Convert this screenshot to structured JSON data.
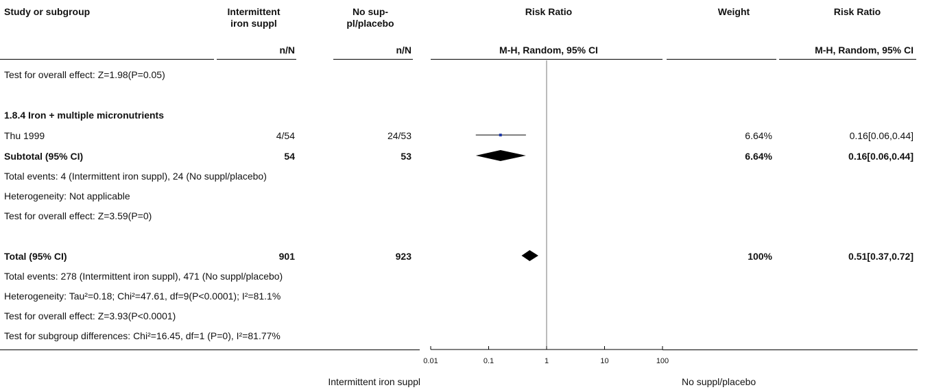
{
  "header": {
    "study_or_subgroup": "Study or subgroup",
    "group1_line1": "Intermittent",
    "group1_line2": "iron suppl",
    "group2_line1": "No sup-",
    "group2_line2": "pl/placebo",
    "risk_ratio": "Risk Ratio",
    "weight": "Weight",
    "risk_ratio_right": "Risk Ratio",
    "n_over_n_1": "n/N",
    "n_over_n_2": "n/N",
    "method": "M-H, Random, 95% CI",
    "method_right": "M-H, Random, 95% CI"
  },
  "rows": {
    "test_effect_prev": "Test for overall effect: Z=1.98(P=0.05)",
    "subgroup_184": "1.8.4 Iron + multiple micronutrients",
    "thu_name": "Thu 1999",
    "thu_g1": "4/54",
    "thu_g2": "24/53",
    "thu_weight": "6.64%",
    "thu_ci": "0.16[0.06,0.44]",
    "subtotal_label": "Subtotal (95% CI)",
    "subtotal_g1": "54",
    "subtotal_g2": "53",
    "subtotal_weight": "6.64%",
    "subtotal_ci": "0.16[0.06,0.44]",
    "sub_events": "Total events: 4 (Intermittent iron suppl), 24 (No suppl/placebo)",
    "sub_het": "Heterogeneity: Not applicable",
    "sub_test": "Test for overall effect: Z=3.59(P=0)",
    "total_label": "Total (95% CI)",
    "total_g1": "901",
    "total_g2": "923",
    "total_weight": "100%",
    "total_ci": "0.51[0.37,0.72]",
    "total_events": "Total events: 278 (Intermittent iron suppl), 471 (No suppl/placebo)",
    "total_het": "Heterogeneity: Tau²=0.18; Chi²=47.61, df=9(P<0.0001); I²=81.1%",
    "total_test": "Test for overall effect: Z=3.93(P<0.0001)",
    "subgroup_diff": "Test for subgroup differences: Chi²=16.45, df=1 (P=0), I²=81.77%"
  },
  "footer": {
    "favours_left": "Intermittent iron suppl",
    "favours_right": "No suppl/placebo"
  },
  "chart_data": {
    "type": "forest",
    "scale": "log",
    "xlim": [
      0.01,
      100
    ],
    "ticks": [
      0.01,
      0.1,
      1,
      10,
      100
    ],
    "tick_labels": [
      "0.01",
      "0.1",
      "1",
      "10",
      "100"
    ],
    "null_line": 1,
    "studies": [
      {
        "name": "Thu 1999",
        "rr": 0.16,
        "lo": 0.06,
        "hi": 0.44,
        "weight": 6.64
      }
    ],
    "diamonds": [
      {
        "name": "Subtotal (95% CI)",
        "rr": 0.16,
        "lo": 0.06,
        "hi": 0.44
      },
      {
        "name": "Total (95% CI)",
        "rr": 0.51,
        "lo": 0.37,
        "hi": 0.72
      }
    ],
    "colors": {
      "marker": "#1f3aa8",
      "line": "#000000"
    }
  }
}
